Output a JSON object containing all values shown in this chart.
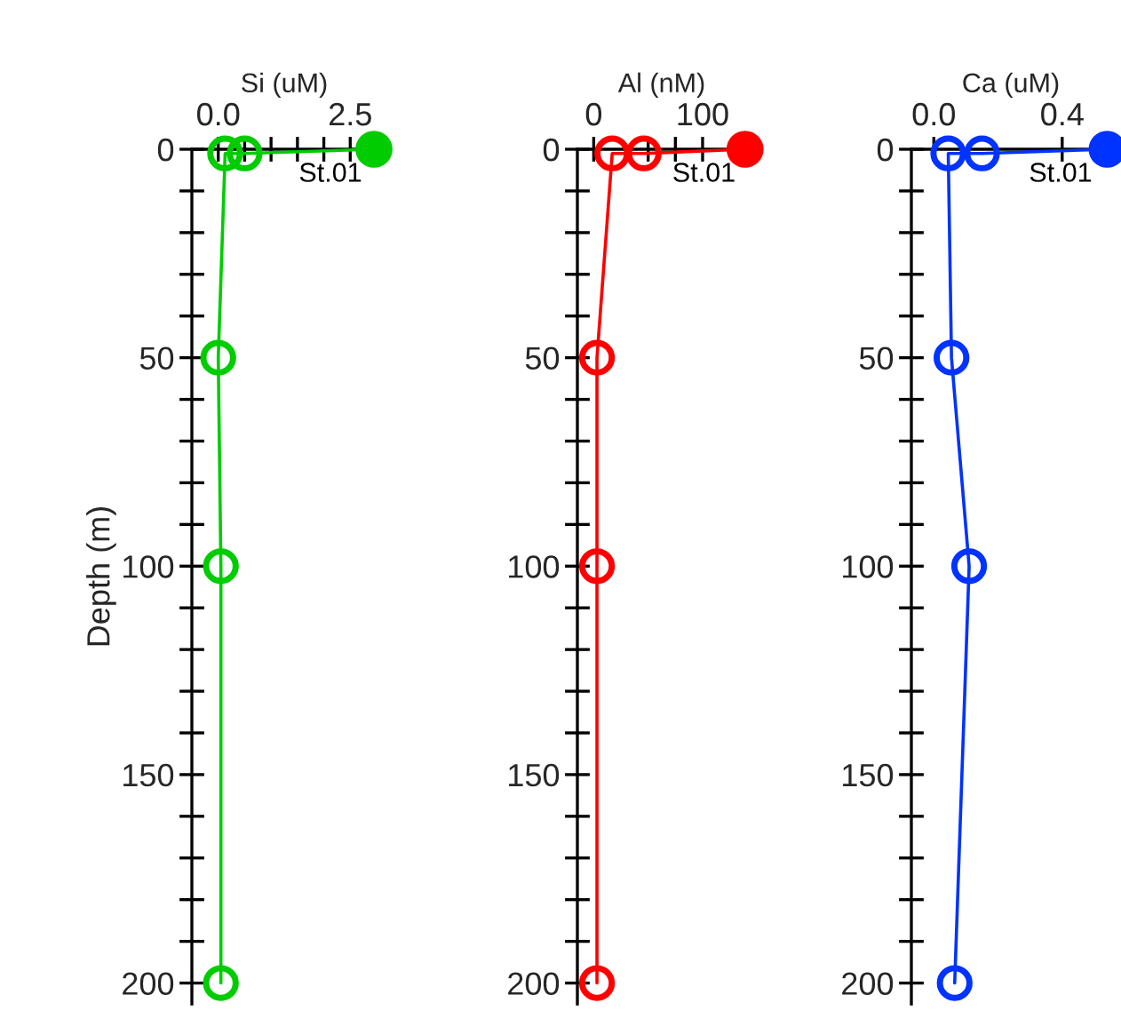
{
  "chart_data": [
    {
      "type": "line",
      "xlabel": "Si (uM)",
      "ylabel": "Depth (m)",
      "xlim": [
        -0.5,
        3.0
      ],
      "ylim": [
        205,
        0
      ],
      "xticks": [
        {
          "value": 0,
          "label": "0.0"
        },
        {
          "value": 0.5,
          "label": null
        },
        {
          "value": 1.0,
          "label": null
        },
        {
          "value": 1.5,
          "label": null
        },
        {
          "value": 2.0,
          "label": null
        },
        {
          "value": 2.5,
          "label": "2.5"
        }
      ],
      "yticks": [
        0,
        {
          "value": 10,
          "label": null
        },
        {
          "value": 20,
          "label": null
        },
        {
          "value": 30,
          "label": null
        },
        {
          "value": 40,
          "label": null
        },
        50,
        {
          "value": 60,
          "label": null
        },
        {
          "value": 70,
          "label": null
        },
        {
          "value": 80,
          "label": null
        },
        {
          "value": 90,
          "label": null
        },
        100,
        {
          "value": 110,
          "label": null
        },
        {
          "value": 120,
          "label": null
        },
        {
          "value": 130,
          "label": null
        },
        {
          "value": 140,
          "label": null
        },
        150,
        {
          "value": 160,
          "label": null
        },
        {
          "value": 170,
          "label": null
        },
        {
          "value": 180,
          "label": null
        },
        {
          "value": 190,
          "label": null
        },
        200
      ],
      "grid": false,
      "legend": false,
      "series": [
        {
          "name": "St.01",
          "color": "#00cc00",
          "marker": "circle",
          "x": [
            2.95,
            0.5,
            0.13,
            0.0,
            0.05,
            0.05
          ],
          "values": [
            0,
            1,
            1,
            50,
            100,
            200
          ]
        },
        {
          "type": "scatter",
          "color": "#00cc00",
          "marker": "circle",
          "x": [
            2.95
          ],
          "values": [
            0
          ]
        }
      ]
    },
    {
      "type": "line",
      "xlabel": "Al (nM)",
      "xlim": [
        -15,
        140
      ],
      "ylim": [
        205,
        0
      ],
      "xticks": [
        0,
        {
          "value": 50,
          "label": null
        },
        {
          "value": 75,
          "label": null
        },
        100
      ],
      "yticks": [
        0,
        {
          "value": 10,
          "label": null
        },
        {
          "value": 20,
          "label": null
        },
        {
          "value": 30,
          "label": null
        },
        {
          "value": 40,
          "label": null
        },
        50,
        {
          "value": 60,
          "label": null
        },
        {
          "value": 70,
          "label": null
        },
        {
          "value": 80,
          "label": null
        },
        {
          "value": 90,
          "label": null
        },
        100,
        {
          "value": 110,
          "label": null
        },
        {
          "value": 120,
          "label": null
        },
        {
          "value": 130,
          "label": null
        },
        {
          "value": 140,
          "label": null
        },
        150,
        {
          "value": 160,
          "label": null
        },
        {
          "value": 170,
          "label": null
        },
        {
          "value": 180,
          "label": null
        },
        {
          "value": 190,
          "label": null
        },
        200
      ],
      "grid": false,
      "legend": false,
      "series": [
        {
          "name": "St.01",
          "color": "#ff0000",
          "marker": "circle",
          "x": [
            139,
            46,
            17,
            3,
            3,
            3
          ],
          "values": [
            0,
            1,
            1,
            50,
            100,
            200
          ]
        },
        {
          "type": "scatter",
          "color": "#ff0000",
          "marker": "circle",
          "x": [
            139
          ],
          "values": [
            0
          ]
        }
      ]
    },
    {
      "type": "line",
      "xlabel": "Ca (uM)",
      "xlim": [
        -0.07,
        0.55
      ],
      "ylim": [
        205,
        0
      ],
      "xticks": [
        {
          "value": 0,
          "label": "0.0"
        },
        {
          "value": 0.4,
          "label": "0.4"
        }
      ],
      "yticks": [
        0,
        {
          "value": 10,
          "label": null
        },
        {
          "value": 20,
          "label": null
        },
        {
          "value": 30,
          "label": null
        },
        {
          "value": 40,
          "label": null
        },
        50,
        {
          "value": 60,
          "label": null
        },
        {
          "value": 70,
          "label": null
        },
        {
          "value": 80,
          "label": null
        },
        {
          "value": 90,
          "label": null
        },
        100,
        {
          "value": 110,
          "label": null
        },
        {
          "value": 120,
          "label": null
        },
        {
          "value": 130,
          "label": null
        },
        {
          "value": 140,
          "label": null
        },
        150,
        {
          "value": 160,
          "label": null
        },
        {
          "value": 170,
          "label": null
        },
        {
          "value": 180,
          "label": null
        },
        {
          "value": 190,
          "label": null
        },
        200
      ],
      "grid": false,
      "legend": false,
      "series": [
        {
          "name": "St.01",
          "color": "#0033ff",
          "marker": "circle",
          "x": [
            0.54,
            0.15,
            0.045,
            0.055,
            0.11,
            0.065
          ],
          "values": [
            0,
            1,
            1,
            50,
            100,
            200
          ]
        },
        {
          "type": "scatter",
          "color": "#0033ff",
          "marker": "circle",
          "x": [
            0.54
          ],
          "values": [
            0
          ]
        }
      ]
    }
  ]
}
